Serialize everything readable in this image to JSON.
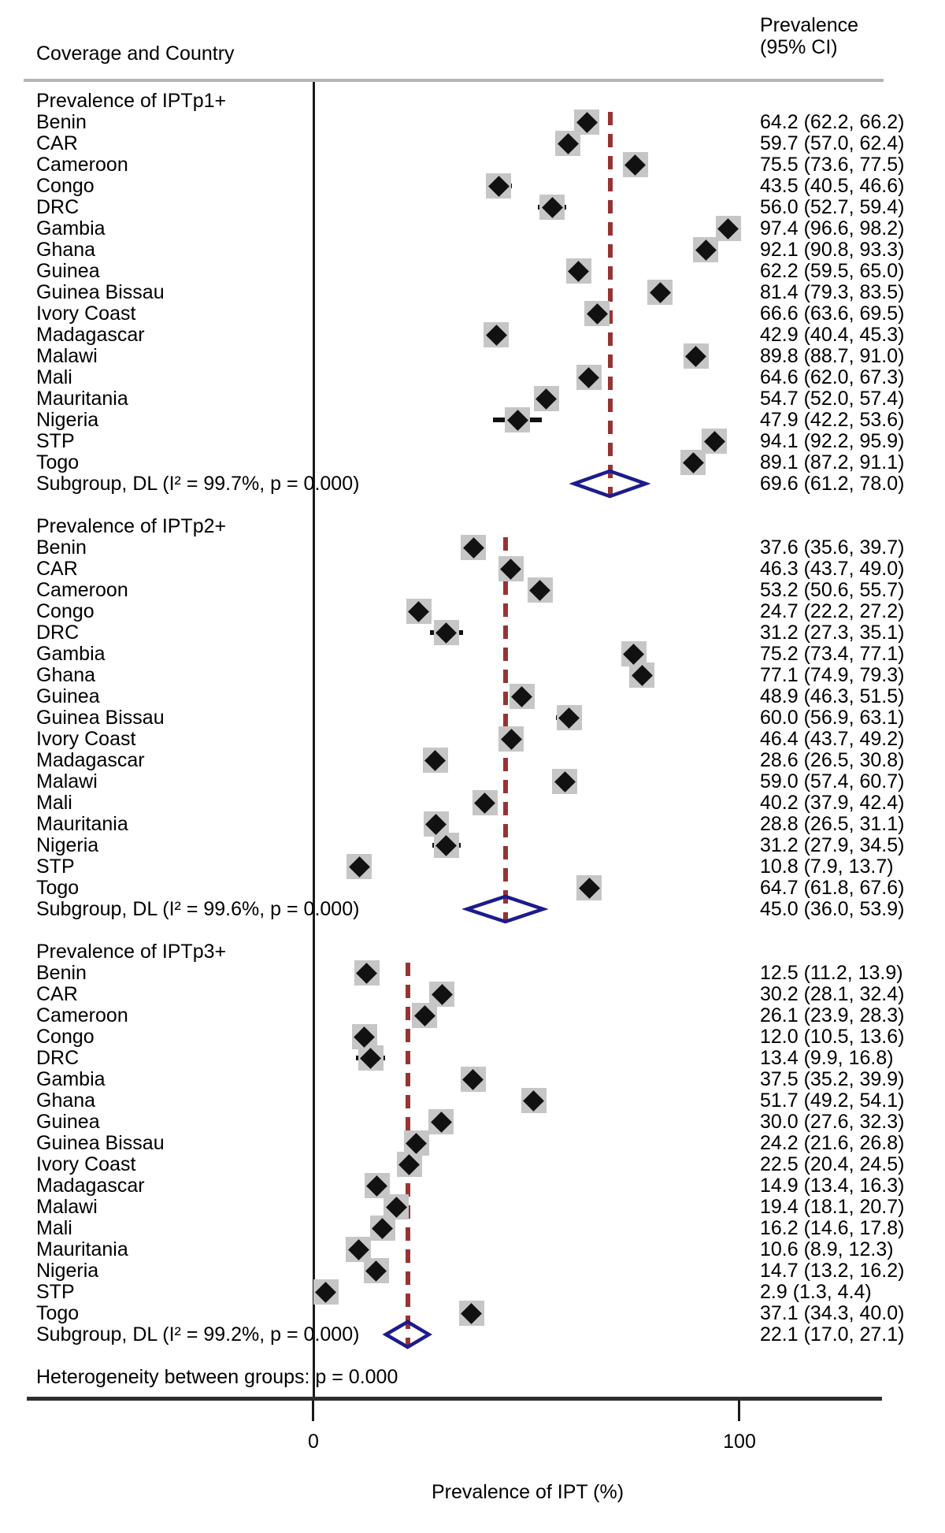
{
  "header": {
    "left_column": "Coverage and Country",
    "right_column_line1": "Prevalence",
    "right_column_line2": "(95% CI)"
  },
  "axis": {
    "tick0": "0",
    "tick100": "100",
    "title": "Prevalence of IPT (%)"
  },
  "footer": {
    "heterogeneity": "Heterogeneity between groups: p = 0.000"
  },
  "colors": {
    "text": "#000000",
    "marker_black": "#111111",
    "weight_box_gray": "#c6c6c6",
    "ci_line": "#111111",
    "pooled_dash_red": "#963434",
    "diamond_navy": "#1c1c8c",
    "axis_dark": "#2e2e2e",
    "separator_gray": "#b5b5b5"
  },
  "chart_data": {
    "type": "forest",
    "title": "",
    "xlabel": "Prevalence of IPT (%)",
    "xlim": [
      0,
      100
    ],
    "x_ticks": [
      "0",
      "100"
    ],
    "columns": [
      "Coverage and Country",
      "Prevalence (95% CI)"
    ],
    "heterogeneity_note": "Heterogeneity between groups: p = 0.000",
    "groups": [
      {
        "title": "Prevalence of IPTp1+",
        "rows": [
          {
            "label": "Benin",
            "est": 64.2,
            "lo": 62.2,
            "hi": 66.2,
            "ci_text": "64.2 (62.2, 66.2)"
          },
          {
            "label": "CAR",
            "est": 59.7,
            "lo": 57.0,
            "hi": 62.4,
            "ci_text": "59.7 (57.0, 62.4)"
          },
          {
            "label": "Cameroon",
            "est": 75.5,
            "lo": 73.6,
            "hi": 77.5,
            "ci_text": "75.5 (73.6, 77.5)"
          },
          {
            "label": "Congo",
            "est": 43.5,
            "lo": 40.5,
            "hi": 46.6,
            "ci_text": "43.5 (40.5, 46.6)"
          },
          {
            "label": "DRC",
            "est": 56.0,
            "lo": 52.7,
            "hi": 59.4,
            "ci_text": "56.0 (52.7, 59.4)"
          },
          {
            "label": "Gambia",
            "est": 97.4,
            "lo": 96.6,
            "hi": 98.2,
            "ci_text": "97.4 (96.6, 98.2)"
          },
          {
            "label": "Ghana",
            "est": 92.1,
            "lo": 90.8,
            "hi": 93.3,
            "ci_text": "92.1 (90.8, 93.3)"
          },
          {
            "label": "Guinea",
            "est": 62.2,
            "lo": 59.5,
            "hi": 65.0,
            "ci_text": "62.2 (59.5, 65.0)"
          },
          {
            "label": "Guinea Bissau",
            "est": 81.4,
            "lo": 79.3,
            "hi": 83.5,
            "ci_text": "81.4 (79.3, 83.5)"
          },
          {
            "label": "Ivory Coast",
            "est": 66.6,
            "lo": 63.6,
            "hi": 69.5,
            "ci_text": "66.6 (63.6, 69.5)"
          },
          {
            "label": "Madagascar",
            "est": 42.9,
            "lo": 40.4,
            "hi": 45.3,
            "ci_text": "42.9 (40.4, 45.3)"
          },
          {
            "label": "Malawi",
            "est": 89.8,
            "lo": 88.7,
            "hi": 91.0,
            "ci_text": "89.8 (88.7, 91.0)"
          },
          {
            "label": "Mali",
            "est": 64.6,
            "lo": 62.0,
            "hi": 67.3,
            "ci_text": "64.6 (62.0, 67.3)"
          },
          {
            "label": "Mauritania",
            "est": 54.7,
            "lo": 52.0,
            "hi": 57.4,
            "ci_text": "54.7 (52.0, 57.4)"
          },
          {
            "label": "Nigeria",
            "est": 47.9,
            "lo": 42.2,
            "hi": 53.6,
            "ci_text": "47.9 (42.2, 53.6)"
          },
          {
            "label": "STP",
            "est": 94.1,
            "lo": 92.2,
            "hi": 95.9,
            "ci_text": "94.1 (92.2, 95.9)"
          },
          {
            "label": "Togo",
            "est": 89.1,
            "lo": 87.2,
            "hi": 91.1,
            "ci_text": "89.1 (87.2, 91.1)"
          }
        ],
        "subgroup": {
          "label": "Subgroup, DL (I² = 99.7%, p = 0.000)",
          "est": 69.6,
          "lo": 61.2,
          "hi": 78.0,
          "ci_text": "69.6 (61.2, 78.0)"
        }
      },
      {
        "title": "Prevalence of IPTp2+",
        "rows": [
          {
            "label": "Benin",
            "est": 37.6,
            "lo": 35.6,
            "hi": 39.7,
            "ci_text": "37.6 (35.6, 39.7)"
          },
          {
            "label": "CAR",
            "est": 46.3,
            "lo": 43.7,
            "hi": 49.0,
            "ci_text": "46.3 (43.7, 49.0)"
          },
          {
            "label": "Cameroon",
            "est": 53.2,
            "lo": 50.6,
            "hi": 55.7,
            "ci_text": "53.2 (50.6, 55.7)"
          },
          {
            "label": "Congo",
            "est": 24.7,
            "lo": 22.2,
            "hi": 27.2,
            "ci_text": "24.7 (22.2, 27.2)"
          },
          {
            "label": "DRC",
            "est": 31.2,
            "lo": 27.3,
            "hi": 35.1,
            "ci_text": "31.2 (27.3, 35.1)"
          },
          {
            "label": "Gambia",
            "est": 75.2,
            "lo": 73.4,
            "hi": 77.1,
            "ci_text": "75.2 (73.4, 77.1)"
          },
          {
            "label": "Ghana",
            "est": 77.1,
            "lo": 74.9,
            "hi": 79.3,
            "ci_text": "77.1 (74.9, 79.3)"
          },
          {
            "label": "Guinea",
            "est": 48.9,
            "lo": 46.3,
            "hi": 51.5,
            "ci_text": "48.9 (46.3, 51.5)"
          },
          {
            "label": "Guinea Bissau",
            "est": 60.0,
            "lo": 56.9,
            "hi": 63.1,
            "ci_text": "60.0 (56.9, 63.1)"
          },
          {
            "label": "Ivory Coast",
            "est": 46.4,
            "lo": 43.7,
            "hi": 49.2,
            "ci_text": "46.4 (43.7, 49.2)"
          },
          {
            "label": "Madagascar",
            "est": 28.6,
            "lo": 26.5,
            "hi": 30.8,
            "ci_text": "28.6 (26.5, 30.8)"
          },
          {
            "label": "Malawi",
            "est": 59.0,
            "lo": 57.4,
            "hi": 60.7,
            "ci_text": "59.0 (57.4, 60.7)"
          },
          {
            "label": "Mali",
            "est": 40.2,
            "lo": 37.9,
            "hi": 42.4,
            "ci_text": "40.2 (37.9, 42.4)"
          },
          {
            "label": "Mauritania",
            "est": 28.8,
            "lo": 26.5,
            "hi": 31.1,
            "ci_text": "28.8 (26.5, 31.1)"
          },
          {
            "label": "Nigeria",
            "est": 31.2,
            "lo": 27.9,
            "hi": 34.5,
            "ci_text": "31.2 (27.9, 34.5)"
          },
          {
            "label": "STP",
            "est": 10.8,
            "lo": 7.9,
            "hi": 13.7,
            "ci_text": "10.8 (7.9, 13.7)"
          },
          {
            "label": "Togo",
            "est": 64.7,
            "lo": 61.8,
            "hi": 67.6,
            "ci_text": "64.7 (61.8, 67.6)"
          }
        ],
        "subgroup": {
          "label": "Subgroup, DL (I² = 99.6%, p = 0.000)",
          "est": 45.0,
          "lo": 36.0,
          "hi": 53.9,
          "ci_text": "45.0 (36.0, 53.9)"
        }
      },
      {
        "title": "Prevalence of IPTp3+",
        "rows": [
          {
            "label": "Benin",
            "est": 12.5,
            "lo": 11.2,
            "hi": 13.9,
            "ci_text": "12.5 (11.2, 13.9)"
          },
          {
            "label": "CAR",
            "est": 30.2,
            "lo": 28.1,
            "hi": 32.4,
            "ci_text": "30.2 (28.1, 32.4)"
          },
          {
            "label": "Cameroon",
            "est": 26.1,
            "lo": 23.9,
            "hi": 28.3,
            "ci_text": "26.1 (23.9, 28.3)"
          },
          {
            "label": "Congo",
            "est": 12.0,
            "lo": 10.5,
            "hi": 13.6,
            "ci_text": "12.0 (10.5, 13.6)"
          },
          {
            "label": "DRC",
            "est": 13.4,
            "lo": 9.9,
            "hi": 16.8,
            "ci_text": "13.4 (9.9, 16.8)"
          },
          {
            "label": "Gambia",
            "est": 37.5,
            "lo": 35.2,
            "hi": 39.9,
            "ci_text": "37.5 (35.2, 39.9)"
          },
          {
            "label": "Ghana",
            "est": 51.7,
            "lo": 49.2,
            "hi": 54.1,
            "ci_text": "51.7 (49.2, 54.1)"
          },
          {
            "label": "Guinea",
            "est": 30.0,
            "lo": 27.6,
            "hi": 32.3,
            "ci_text": "30.0 (27.6, 32.3)"
          },
          {
            "label": "Guinea Bissau",
            "est": 24.2,
            "lo": 21.6,
            "hi": 26.8,
            "ci_text": "24.2 (21.6, 26.8)"
          },
          {
            "label": "Ivory Coast",
            "est": 22.5,
            "lo": 20.4,
            "hi": 24.5,
            "ci_text": "22.5 (20.4, 24.5)"
          },
          {
            "label": "Madagascar",
            "est": 14.9,
            "lo": 13.4,
            "hi": 16.3,
            "ci_text": "14.9 (13.4, 16.3)"
          },
          {
            "label": "Malawi",
            "est": 19.4,
            "lo": 18.1,
            "hi": 20.7,
            "ci_text": "19.4 (18.1, 20.7)"
          },
          {
            "label": "Mali",
            "est": 16.2,
            "lo": 14.6,
            "hi": 17.8,
            "ci_text": "16.2 (14.6, 17.8)"
          },
          {
            "label": "Mauritania",
            "est": 10.6,
            "lo": 8.9,
            "hi": 12.3,
            "ci_text": "10.6 (8.9, 12.3)"
          },
          {
            "label": "Nigeria",
            "est": 14.7,
            "lo": 13.2,
            "hi": 16.2,
            "ci_text": "14.7 (13.2, 16.2)"
          },
          {
            "label": "STP",
            "est": 2.9,
            "lo": 1.3,
            "hi": 4.4,
            "ci_text": "2.9 (1.3, 4.4)"
          },
          {
            "label": "Togo",
            "est": 37.1,
            "lo": 34.3,
            "hi": 40.0,
            "ci_text": "37.1 (34.3, 40.0)"
          }
        ],
        "subgroup": {
          "label": "Subgroup, DL (I² = 99.2%, p = 0.000)",
          "est": 22.1,
          "lo": 17.0,
          "hi": 27.1,
          "ci_text": "22.1 (17.0, 27.1)"
        }
      }
    ]
  }
}
